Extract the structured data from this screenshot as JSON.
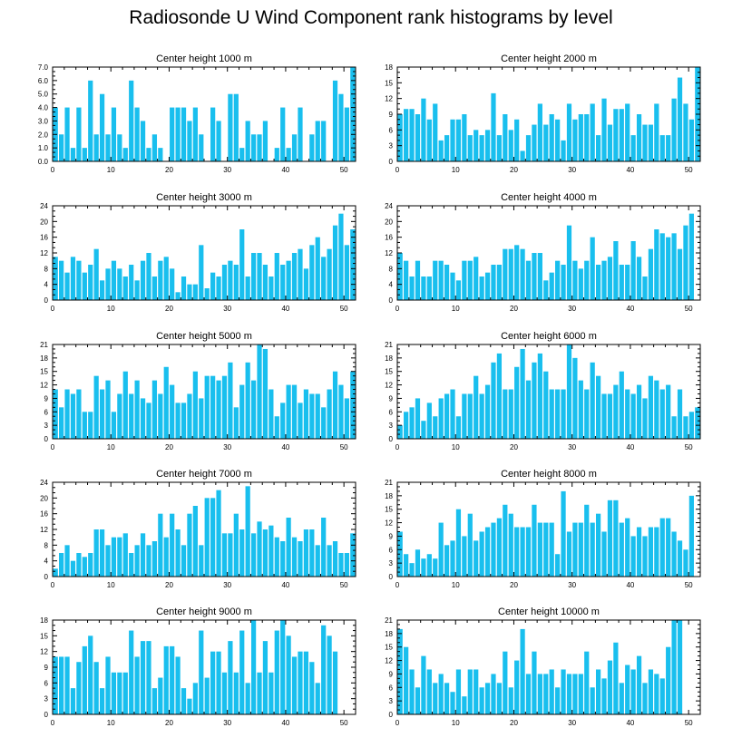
{
  "title": "Radiosonde U Wind Component rank histograms by level",
  "bar_color": "#19bfee",
  "chart_data": [
    {
      "type": "bar",
      "title": "Center height 1000 m",
      "xlim": [
        0,
        52
      ],
      "ylim": [
        0,
        7
      ],
      "yticks": [
        "0.0",
        "1.0",
        "2.0",
        "3.0",
        "4.0",
        "5.0",
        "6.0",
        "7.0"
      ],
      "xticks": [
        "0",
        "10",
        "20",
        "30",
        "40",
        "50"
      ],
      "values": [
        4,
        2,
        4,
        1,
        4,
        1,
        6,
        2,
        5,
        2,
        4,
        2,
        1,
        6,
        4,
        3,
        1,
        2,
        1,
        0,
        4,
        4,
        4,
        3,
        4,
        2,
        0,
        4,
        3,
        0,
        5,
        5,
        1,
        3,
        2,
        2,
        3,
        0,
        1,
        4,
        1,
        2,
        4,
        0,
        2,
        3,
        3,
        0,
        6,
        5,
        4,
        7
      ]
    },
    {
      "type": "bar",
      "title": "Center height 2000 m",
      "xlim": [
        0,
        52
      ],
      "ylim": [
        0,
        18
      ],
      "yticks": [
        "0",
        "3",
        "6",
        "9",
        "12",
        "15",
        "18"
      ],
      "xticks": [
        "0",
        "10",
        "20",
        "30",
        "40",
        "50"
      ],
      "values": [
        9,
        10,
        10,
        9,
        12,
        8,
        11,
        4,
        5,
        8,
        8,
        9,
        5,
        6,
        5,
        6,
        13,
        5,
        9,
        6,
        8,
        2,
        5,
        7,
        11,
        7,
        9,
        8,
        4,
        11,
        8,
        9,
        9,
        11,
        5,
        12,
        7,
        10,
        10,
        11,
        5,
        9,
        7,
        7,
        11,
        5,
        5,
        12,
        16,
        11,
        8,
        18
      ]
    },
    {
      "type": "bar",
      "title": "Center height 3000 m",
      "xlim": [
        0,
        52
      ],
      "ylim": [
        0,
        24
      ],
      "yticks": [
        "0",
        "4",
        "8",
        "12",
        "16",
        "20",
        "24"
      ],
      "xticks": [
        "0",
        "10",
        "20",
        "30",
        "40",
        "50"
      ],
      "values": [
        11,
        10,
        7,
        11,
        10,
        7,
        9,
        13,
        5,
        8,
        10,
        8,
        6,
        9,
        5,
        10,
        12,
        6,
        10,
        11,
        8,
        2,
        6,
        4,
        4,
        14,
        3,
        7,
        6,
        9,
        10,
        9,
        18,
        6,
        12,
        12,
        9,
        6,
        12,
        9,
        10,
        12,
        13,
        8,
        14,
        16,
        11,
        13,
        19,
        22,
        14,
        18
      ]
    },
    {
      "type": "bar",
      "title": "Center height 4000 m",
      "xlim": [
        0,
        52
      ],
      "ylim": [
        0,
        24
      ],
      "yticks": [
        "0",
        "4",
        "8",
        "12",
        "16",
        "20",
        "24"
      ],
      "xticks": [
        "0",
        "10",
        "20",
        "30",
        "40",
        "50"
      ],
      "values": [
        12,
        10,
        6,
        10,
        6,
        6,
        10,
        10,
        9,
        7,
        5,
        10,
        10,
        11,
        6,
        7,
        9,
        9,
        13,
        13,
        14,
        13,
        10,
        12,
        12,
        5,
        7,
        10,
        9,
        19,
        10,
        8,
        10,
        16,
        9,
        10,
        11,
        15,
        9,
        9,
        15,
        11,
        6,
        13,
        18,
        17,
        16,
        17,
        13,
        19,
        22,
        0
      ]
    },
    {
      "type": "bar",
      "title": "Center height 5000 m",
      "xlim": [
        0,
        52
      ],
      "ylim": [
        0,
        21
      ],
      "yticks": [
        "0",
        "3",
        "6",
        "9",
        "12",
        "15",
        "18",
        "21"
      ],
      "xticks": [
        "0",
        "10",
        "20",
        "30",
        "40",
        "50"
      ],
      "values": [
        11,
        7,
        11,
        10,
        11,
        6,
        6,
        14,
        11,
        13,
        6,
        10,
        15,
        10,
        13,
        9,
        8,
        13,
        10,
        16,
        12,
        8,
        8,
        10,
        15,
        9,
        14,
        14,
        13,
        14,
        17,
        7,
        12,
        17,
        13,
        21,
        20,
        11,
        5,
        8,
        12,
        12,
        8,
        11,
        10,
        10,
        7,
        11,
        15,
        12,
        9,
        15
      ]
    },
    {
      "type": "bar",
      "title": "Center height 6000 m",
      "xlim": [
        0,
        52
      ],
      "ylim": [
        0,
        21
      ],
      "yticks": [
        "0",
        "3",
        "6",
        "9",
        "12",
        "15",
        "18",
        "21"
      ],
      "xticks": [
        "0",
        "10",
        "20",
        "30",
        "40",
        "50"
      ],
      "values": [
        3,
        6,
        7,
        9,
        4,
        8,
        5,
        9,
        10,
        11,
        5,
        10,
        10,
        14,
        10,
        12,
        17,
        19,
        11,
        11,
        16,
        20,
        13,
        17,
        19,
        15,
        11,
        11,
        11,
        21,
        18,
        13,
        11,
        17,
        14,
        10,
        10,
        12,
        15,
        11,
        10,
        12,
        9,
        14,
        13,
        11,
        12,
        5,
        11,
        5,
        6,
        7
      ]
    },
    {
      "type": "bar",
      "title": "Center height 7000 m",
      "xlim": [
        0,
        52
      ],
      "ylim": [
        0,
        24
      ],
      "yticks": [
        "0",
        "4",
        "8",
        "12",
        "16",
        "20",
        "24"
      ],
      "xticks": [
        "0",
        "10",
        "20",
        "30",
        "40",
        "50"
      ],
      "values": [
        2,
        6,
        8,
        4,
        6,
        5,
        6,
        12,
        12,
        8,
        10,
        10,
        11,
        6,
        8,
        11,
        8,
        9,
        16,
        10,
        16,
        12,
        8,
        16,
        18,
        8,
        20,
        20,
        22,
        11,
        11,
        16,
        12,
        23,
        11,
        14,
        12,
        13,
        10,
        9,
        15,
        10,
        9,
        12,
        12,
        8,
        15,
        8,
        9,
        6,
        6,
        11
      ]
    },
    {
      "type": "bar",
      "title": "Center height 8000 m",
      "xlim": [
        0,
        52
      ],
      "ylim": [
        0,
        21
      ],
      "yticks": [
        "0",
        "3",
        "6",
        "9",
        "12",
        "15",
        "18",
        "21"
      ],
      "xticks": [
        "0",
        "10",
        "20",
        "30",
        "40",
        "50"
      ],
      "values": [
        10,
        5,
        3,
        6,
        4,
        5,
        4,
        12,
        7,
        8,
        15,
        9,
        14,
        8,
        10,
        11,
        12,
        13,
        16,
        14,
        11,
        11,
        11,
        16,
        12,
        12,
        12,
        5,
        19,
        10,
        12,
        12,
        16,
        12,
        14,
        10,
        17,
        17,
        12,
        13,
        9,
        11,
        9,
        11,
        11,
        13,
        13,
        10,
        8,
        6,
        18,
        0
      ]
    },
    {
      "type": "bar",
      "title": "Center height 9000 m",
      "xlim": [
        0,
        52
      ],
      "ylim": [
        0,
        18
      ],
      "yticks": [
        "0",
        "3",
        "6",
        "9",
        "12",
        "15",
        "18"
      ],
      "xticks": [
        "0",
        "10",
        "20",
        "30",
        "40",
        "50"
      ],
      "values": [
        11,
        11,
        11,
        5,
        10,
        13,
        15,
        10,
        5,
        11,
        8,
        8,
        8,
        16,
        11,
        14,
        14,
        5,
        7,
        13,
        13,
        11,
        5,
        3,
        6,
        16,
        7,
        12,
        12,
        8,
        14,
        8,
        16,
        6,
        18,
        8,
        14,
        8,
        16,
        18,
        15,
        11,
        12,
        12,
        10,
        6,
        17,
        15,
        12,
        0,
        0,
        0
      ]
    },
    {
      "type": "bar",
      "title": "Center height 10000 m",
      "xlim": [
        0,
        52
      ],
      "ylim": [
        0,
        21
      ],
      "yticks": [
        "0",
        "3",
        "6",
        "9",
        "12",
        "15",
        "18",
        "21"
      ],
      "xticks": [
        "0",
        "10",
        "20",
        "30",
        "40",
        "50"
      ],
      "values": [
        19,
        15,
        10,
        6,
        13,
        10,
        7,
        9,
        7,
        5,
        10,
        4,
        10,
        10,
        6,
        7,
        9,
        7,
        14,
        6,
        12,
        19,
        9,
        14,
        9,
        9,
        10,
        6,
        10,
        9,
        9,
        9,
        14,
        6,
        10,
        8,
        12,
        16,
        7,
        11,
        10,
        13,
        7,
        10,
        9,
        8,
        15,
        21,
        21,
        0,
        0,
        0
      ]
    }
  ]
}
